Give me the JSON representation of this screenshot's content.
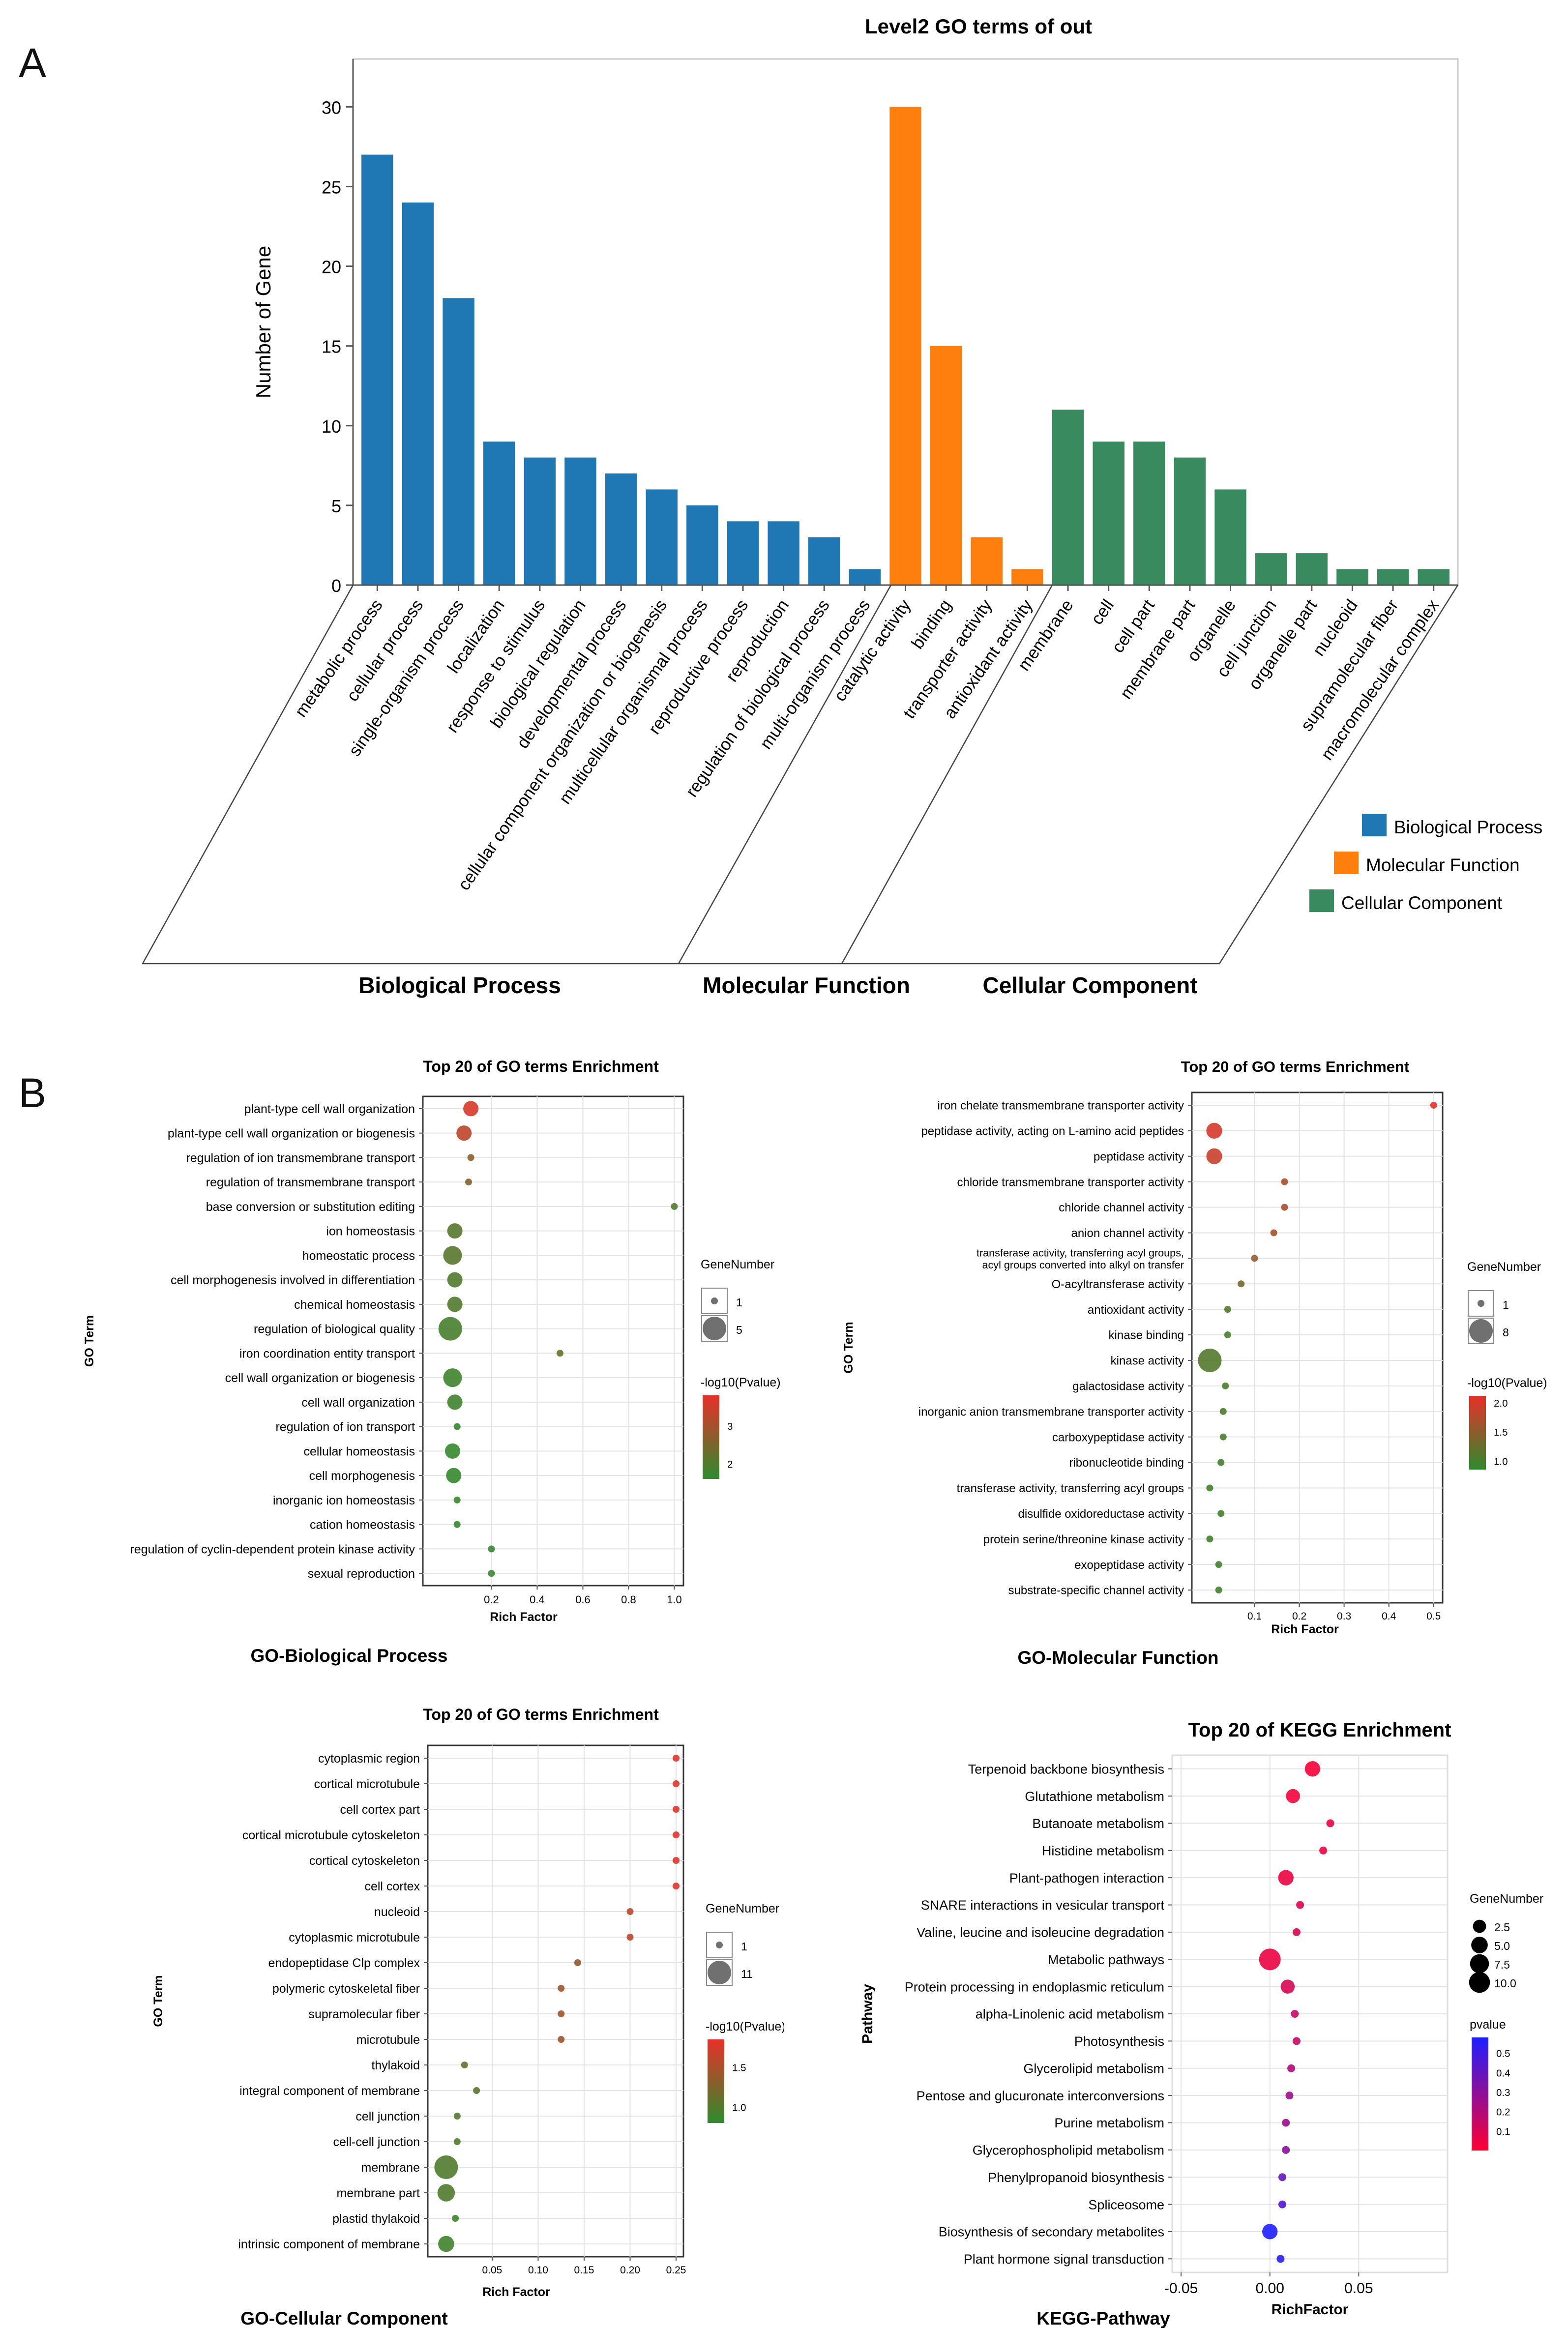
{
  "panels": {
    "a": "A",
    "b": "B"
  },
  "chart_data": [
    {
      "id": "level2",
      "type": "bar",
      "title": "Level2 GO terms of out",
      "ylabel": "Number of Gene",
      "ylim": [
        0,
        33
      ],
      "yticks": [
        0,
        5,
        10,
        15,
        20,
        25,
        30
      ],
      "categories": [
        "metabolic process",
        "cellular process",
        "single-organism process",
        "localization",
        "response to stimulus",
        "biological regulation",
        "developmental process",
        "cellular component organization or biogenesis",
        "multicellular organismal process",
        "reproductive process",
        "reproduction",
        "regulation of biological process",
        "multi-organism process",
        "catalytic activity",
        "binding",
        "transporter activity",
        "antioxidant activity",
        "membrane",
        "cell",
        "cell part",
        "membrane part",
        "organelle",
        "cell junction",
        "organelle part",
        "nucleoid",
        "supramolecular fiber",
        "macromolecular complex"
      ],
      "values": [
        27,
        24,
        18,
        9,
        8,
        8,
        7,
        6,
        5,
        4,
        4,
        3,
        1,
        30,
        15,
        3,
        1,
        11,
        9,
        9,
        8,
        6,
        2,
        2,
        1,
        1,
        1
      ],
      "groups": [
        0,
        0,
        0,
        0,
        0,
        0,
        0,
        0,
        0,
        0,
        0,
        0,
        0,
        1,
        1,
        1,
        1,
        2,
        2,
        2,
        2,
        2,
        2,
        2,
        2,
        2,
        2
      ],
      "series": [
        {
          "name": "Biological Process",
          "color": "#1f77b4"
        },
        {
          "name": "Molecular Function",
          "color": "#ff7f0e"
        },
        {
          "name": "Cellular Component",
          "color": "#3a8a5f"
        }
      ],
      "group_labels": [
        "Biological Process",
        "Molecular Function",
        "Cellular Component"
      ]
    },
    {
      "id": "go_bp",
      "type": "scatter",
      "title": "Top 20 of GO terms Enrichment",
      "caption": "GO-Biological Process",
      "xlabel": "Rich Factor",
      "ylabel": "GO Term",
      "xlim": [
        -0.1,
        1.04
      ],
      "xticks": [
        0.2,
        0.4,
        0.6,
        0.8,
        1.0
      ],
      "xtick_labels": [
        "0.2",
        "0.4",
        "0.6",
        "0.8",
        "1.0"
      ],
      "terms": [
        "plant-type cell wall organization",
        "plant-type cell wall organization or biogenesis",
        "regulation of ion transmembrane transport",
        "regulation of transmembrane transport",
        "base conversion or substitution editing",
        "ion homeostasis",
        "homeostatic process",
        "cell morphogenesis involved in differentiation",
        "chemical homeostasis",
        "regulation of biological quality",
        "iron coordination entity transport",
        "cell wall organization or biogenesis",
        "cell wall organization",
        "regulation of ion transport",
        "cellular homeostasis",
        "cell morphogenesis",
        "inorganic ion homeostasis",
        "cation homeostasis",
        "regulation of cyclin-dependent protein kinase activity",
        "sexual reproduction"
      ],
      "x": [
        0.11,
        0.08,
        0.11,
        0.1,
        1.0,
        0.04,
        0.03,
        0.04,
        0.04,
        0.02,
        0.5,
        0.03,
        0.04,
        0.05,
        0.03,
        0.035,
        0.05,
        0.05,
        0.2,
        0.2
      ],
      "size": [
        2,
        2,
        1,
        1,
        1,
        2,
        3,
        2,
        2,
        5,
        1,
        3,
        2,
        1,
        2,
        2,
        1,
        1,
        1,
        1
      ],
      "pvalue_log10": [
        3.6,
        3.3,
        2.7,
        2.6,
        2.0,
        2.1,
        2.1,
        2.0,
        2.0,
        1.9,
        2.2,
        1.8,
        1.8,
        1.7,
        1.7,
        1.7,
        1.7,
        1.7,
        1.7,
        1.7
      ],
      "size_legend": {
        "title": "GeneNumber",
        "values": [
          1,
          5
        ],
        "labels": [
          "1",
          "5"
        ]
      },
      "color_legend": {
        "title": "-log10(Pvalue)",
        "min": 1.6,
        "max": 3.8,
        "ticks": [
          2,
          3
        ],
        "tick_labels": [
          "2",
          "3"
        ],
        "low_color": "#2e8b2e",
        "high_color": "#e8302a"
      }
    },
    {
      "id": "go_mf",
      "type": "scatter",
      "title": "Top 20 of GO terms Enrichment",
      "caption": "GO-Molecular Function",
      "xlabel": "Rich Factor",
      "ylabel": "GO Term",
      "xlim": [
        -0.04,
        0.52
      ],
      "xticks": [
        0.1,
        0.2,
        0.3,
        0.4,
        0.5
      ],
      "xtick_labels": [
        "0.1",
        "0.2",
        "0.3",
        "0.4",
        "0.5"
      ],
      "terms": [
        [
          "iron chelate transmembrane transporter activity"
        ],
        [
          "peptidase activity, acting on L-amino acid peptides"
        ],
        [
          "peptidase activity"
        ],
        [
          "chloride transmembrane transporter activity"
        ],
        [
          "chloride channel activity"
        ],
        [
          "anion channel activity"
        ],
        [
          "transferase activity, transferring acyl groups,",
          "acyl groups converted into alkyl on transfer"
        ],
        [
          "O-acyltransferase activity"
        ],
        [
          "antioxidant activity"
        ],
        [
          "kinase binding"
        ],
        [
          "kinase activity"
        ],
        [
          "galactosidase activity"
        ],
        [
          "inorganic anion transmembrane transporter activity"
        ],
        [
          "carboxypeptidase activity"
        ],
        [
          "ribonucleotide binding"
        ],
        [
          "transferase activity, transferring acyl groups"
        ],
        [
          "disulfide oxidoreductase activity"
        ],
        [
          "protein serine/threonine kinase activity"
        ],
        [
          "exopeptidase activity"
        ],
        [
          "substrate-specific channel activity"
        ]
      ],
      "x": [
        0.5,
        0.01,
        0.01,
        0.167,
        0.167,
        0.143,
        0.1,
        0.07,
        0.04,
        0.04,
        0.0,
        0.035,
        0.03,
        0.03,
        0.025,
        0.0,
        0.025,
        0.0,
        0.02,
        0.02
      ],
      "size": [
        1,
        3,
        3,
        1,
        1,
        1,
        1,
        1,
        1,
        1,
        8,
        1,
        1,
        1,
        1,
        1,
        1,
        1,
        1,
        1
      ],
      "pvalue_log10": [
        2.1,
        2.0,
        1.9,
        1.7,
        1.7,
        1.65,
        1.55,
        1.35,
        1.1,
        1.05,
        1.1,
        1.05,
        1.05,
        1.05,
        1.0,
        1.0,
        1.0,
        1.0,
        1.0,
        1.0
      ],
      "size_legend": {
        "title": "GeneNumber",
        "values": [
          1,
          8
        ],
        "labels": [
          "1",
          "8"
        ]
      },
      "color_legend": {
        "title": "-log10(Pvalue)",
        "min": 0.85,
        "max": 2.12,
        "ticks": [
          1.0,
          1.5,
          2.0
        ],
        "tick_labels": [
          "1.0",
          "1.5",
          "2.0"
        ],
        "low_color": "#2e8b2e",
        "high_color": "#e8302a"
      }
    },
    {
      "id": "go_cc",
      "type": "scatter",
      "title": "Top 20 of GO terms Enrichment",
      "caption": "GO-Cellular Component",
      "xlabel": "Rich Factor",
      "ylabel": "GO Term",
      "xlim": [
        -0.02,
        0.258
      ],
      "xticks": [
        0.05,
        0.1,
        0.15,
        0.2,
        0.25
      ],
      "xtick_labels": [
        "0.05",
        "0.10",
        "0.15",
        "0.20",
        "0.25"
      ],
      "terms": [
        "cytoplasmic region",
        "cortical microtubule",
        "cell cortex part",
        "cortical microtubule cytoskeleton",
        "cortical cytoskeleton",
        "cell cortex",
        "nucleoid",
        "cytoplasmic microtubule",
        "endopeptidase Clp complex",
        "polymeric cytoskeletal fiber",
        "supramolecular fiber",
        "microtubule",
        "thylakoid",
        "integral component of membrane",
        "cell junction",
        "cell-cell junction",
        "membrane",
        "membrane part",
        "plastid thylakoid",
        "intrinsic component of membrane"
      ],
      "x": [
        0.25,
        0.25,
        0.25,
        0.25,
        0.25,
        0.25,
        0.2,
        0.2,
        0.143,
        0.125,
        0.125,
        0.125,
        0.02,
        0.033,
        0.012,
        0.012,
        0.0,
        0.0,
        0.01,
        0.0
      ],
      "size": [
        1,
        1,
        1,
        1,
        1,
        1,
        1,
        1,
        1,
        1,
        1,
        1,
        1,
        1,
        1,
        1,
        11,
        5,
        1,
        4
      ],
      "pvalue_log10": [
        1.8,
        1.8,
        1.8,
        1.8,
        1.8,
        1.8,
        1.6,
        1.6,
        1.4,
        1.45,
        1.45,
        1.45,
        1.15,
        1.05,
        1.0,
        1.0,
        1.0,
        1.0,
        0.9,
        0.9
      ],
      "size_legend": {
        "title": "GeneNumber",
        "values": [
          1,
          11
        ],
        "labels": [
          "1",
          "11"
        ]
      },
      "color_legend": {
        "title": "-log10(Pvalue)",
        "min": 0.8,
        "max": 1.85,
        "ticks": [
          1.0,
          1.5
        ],
        "tick_labels": [
          "1.0",
          "1.5"
        ],
        "low_color": "#2e8b2e",
        "high_color": "#e8302a"
      }
    },
    {
      "id": "kegg",
      "type": "scatter",
      "title": "Top 20 of KEGG Enrichment",
      "caption": "KEGG-Pathway",
      "xlabel": "RichFactor",
      "ylabel": "Pathway",
      "xlim": [
        -0.055,
        0.1
      ],
      "xticks": [
        -0.05,
        0.0,
        0.05
      ],
      "xtick_labels": [
        "-0.05",
        "0.00",
        "0.05"
      ],
      "terms": [
        "Terpenoid backbone biosynthesis",
        "Glutathione metabolism",
        "Butanoate metabolism",
        "Histidine metabolism",
        "Plant-pathogen interaction",
        "SNARE interactions in vesicular transport",
        "Valine, leucine and isoleucine degradation",
        "Metabolic pathways",
        "Protein processing in endoplasmic reticulum",
        "alpha-Linolenic acid metabolism",
        "Photosynthesis",
        "Glycerolipid metabolism",
        "Pentose and glucuronate interconversions",
        "Purine metabolism",
        "Glycerophospholipid metabolism",
        "Phenylpropanoid biosynthesis",
        "Spliceosome",
        "Biosynthesis of secondary metabolites",
        "Plant hormone signal transduction"
      ],
      "x": [
        0.024,
        0.013,
        0.034,
        0.03,
        0.009,
        0.017,
        0.015,
        0.0,
        0.01,
        0.014,
        0.015,
        0.012,
        0.011,
        0.009,
        0.009,
        0.007,
        0.007,
        0.0,
        0.006
      ],
      "size": [
        4,
        3,
        1,
        1,
        4,
        1,
        1,
        11,
        3,
        1,
        1,
        1,
        1,
        1,
        1,
        1,
        1,
        4,
        1
      ],
      "pvalue": [
        0.02,
        0.03,
        0.05,
        0.05,
        0.05,
        0.08,
        0.1,
        0.05,
        0.1,
        0.15,
        0.15,
        0.2,
        0.25,
        0.25,
        0.3,
        0.4,
        0.45,
        0.6,
        0.55
      ],
      "size_legend": {
        "title": "GeneNumber",
        "values": [
          2.5,
          5.0,
          7.5,
          10.0
        ],
        "labels": [
          "2.5",
          "5.0",
          "7.5",
          "10.0"
        ]
      },
      "color_legend": {
        "title": "pvalue",
        "min": 0.0,
        "max": 0.58,
        "ticks": [
          0.1,
          0.2,
          0.3,
          0.4,
          0.5
        ],
        "tick_labels": [
          "0.1",
          "0.2",
          "0.3",
          "0.4",
          "0.5"
        ],
        "low_color": "#ff0030",
        "high_color": "#1e1eff"
      }
    }
  ]
}
